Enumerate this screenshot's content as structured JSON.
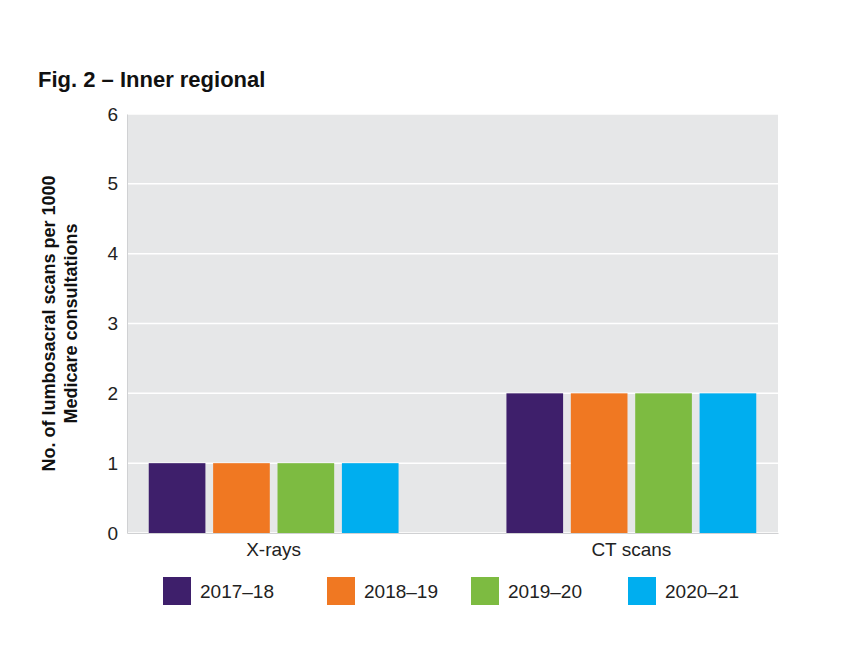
{
  "chart_data": {
    "type": "bar",
    "title": "Fig. 2 – Inner regional",
    "y_label": [
      "No. of lumbosacral scans per 1000",
      "Medicare consultations"
    ],
    "categories": [
      "X-rays",
      "CT scans"
    ],
    "series": [
      {
        "name": "2017–18",
        "color": "#3e1f6b",
        "values": [
          1,
          2
        ]
      },
      {
        "name": "2018–19",
        "color": "#f07822",
        "values": [
          1,
          2
        ]
      },
      {
        "name": "2019–20",
        "color": "#7dbb41",
        "values": [
          1,
          2
        ]
      },
      {
        "name": "2020–21",
        "color": "#00aeef",
        "values": [
          1,
          2
        ]
      }
    ],
    "ylim": [
      0,
      6
    ],
    "yticks": [
      0,
      1,
      2,
      3,
      4,
      5,
      6
    ],
    "grid": true
  }
}
